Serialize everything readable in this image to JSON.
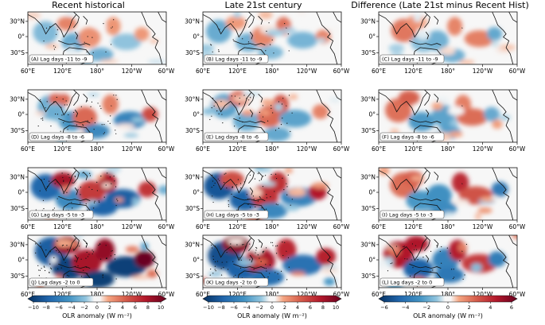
{
  "figure": {
    "column_titles": [
      "Recent historical",
      "Late 21st century",
      "Difference (Late 21st minus Recent Hist)"
    ],
    "lat_ticks": [
      "30°N",
      "0°",
      "30°S"
    ],
    "lon_ticks": [
      "60°E",
      "120°E",
      "180°",
      "120°W",
      "60°W"
    ],
    "panels": [
      {
        "label": "(A) Lag days -11 to -9",
        "row": 0,
        "col": 0,
        "intensity": 0.25,
        "stipple": 0.2
      },
      {
        "label": "(B) Lag days -11 to -9",
        "row": 0,
        "col": 1,
        "intensity": 0.3,
        "stipple": 0.25
      },
      {
        "label": "(C) Lag days -11 to -9",
        "row": 0,
        "col": 2,
        "intensity": 0.3,
        "stipple": 0.0
      },
      {
        "label": "(D) Lag days -8 to -6",
        "row": 1,
        "col": 0,
        "intensity": 0.45,
        "stipple": 0.6
      },
      {
        "label": "(E) Lag days -8 to -6",
        "row": 1,
        "col": 1,
        "intensity": 0.45,
        "stipple": 0.45
      },
      {
        "label": "(F) Lag days -8 to -6",
        "row": 1,
        "col": 2,
        "intensity": 0.4,
        "stipple": 0.0
      },
      {
        "label": "(G) Lag days -5 to -3",
        "row": 2,
        "col": 0,
        "intensity": 0.7,
        "stipple": 0.7
      },
      {
        "label": "(H) Lag days -5 to -3",
        "row": 2,
        "col": 1,
        "intensity": 0.75,
        "stipple": 0.7
      },
      {
        "label": "(I) Lag days -5 to -3",
        "row": 2,
        "col": 2,
        "intensity": 0.55,
        "stipple": 0.0
      },
      {
        "label": "(J) Lag days -2 to 0",
        "row": 3,
        "col": 0,
        "intensity": 1.0,
        "stipple": 0.8
      },
      {
        "label": "(K) Lag days -2 to 0",
        "row": 3,
        "col": 1,
        "intensity": 1.0,
        "stipple": 0.8
      },
      {
        "label": "(L) Lag days -2 to 0",
        "row": 3,
        "col": 2,
        "intensity": 0.7,
        "stipple": 0.4
      }
    ],
    "colorbars": [
      {
        "ticks": [
          "-10",
          "-8",
          "-6",
          "-4",
          "-2",
          "0",
          "2",
          "4",
          "6",
          "8",
          "10"
        ],
        "min": -10,
        "max": 10,
        "label": "OLR anomaly (W m⁻²)"
      },
      {
        "ticks": [
          "-10",
          "-8",
          "-6",
          "-4",
          "-2",
          "0",
          "2",
          "4",
          "6",
          "8",
          "10"
        ],
        "min": -10,
        "max": 10,
        "label": "OLR anomaly (W m⁻²)"
      },
      {
        "ticks": [
          "-6",
          "-4",
          "-2",
          "0",
          "2",
          "4",
          "6"
        ],
        "min": -6,
        "max": 6,
        "label": "OLR anomaly (W m⁻²)"
      }
    ],
    "colors": {
      "deep_blue": "#053061",
      "mid_blue": "#4393c3",
      "light_blue": "#d1e5f0",
      "neutral": "#f7f7f7",
      "light_red": "#fddbc7",
      "mid_red": "#d6604d",
      "deep_red": "#67001f"
    }
  }
}
